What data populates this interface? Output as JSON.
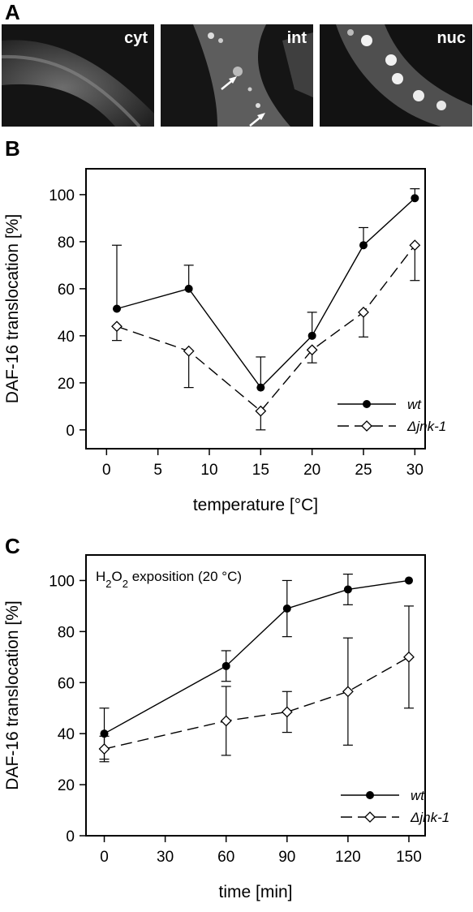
{
  "panels": {
    "a": "A",
    "b": "B",
    "c": "C"
  },
  "micrographs": [
    {
      "label": "cyt"
    },
    {
      "label": "int"
    },
    {
      "label": "nuc"
    }
  ],
  "chart_data": [
    {
      "type": "line",
      "xlabel": "temperature [°C]",
      "ylabel": "DAF-16 translocation [%]",
      "xlim": [
        -2,
        31
      ],
      "ylim": [
        -8,
        111
      ],
      "xticks": [
        0,
        5,
        10,
        15,
        20,
        25,
        30
      ],
      "yticks": [
        0,
        20,
        40,
        60,
        80,
        100
      ],
      "legend_position": "bottom-right",
      "series": [
        {
          "name": "wt",
          "x": [
            1,
            8,
            15,
            20,
            25,
            30
          ],
          "y": [
            51.5,
            60,
            18,
            40,
            78.5,
            98.5
          ],
          "err": [
            27,
            10,
            13,
            10,
            7.5,
            4
          ],
          "marker": "filled-circle",
          "dash": "solid"
        },
        {
          "name": "Δjnk-1",
          "x": [
            1,
            8,
            15,
            20,
            25,
            30
          ],
          "y": [
            44,
            33.5,
            8,
            34,
            50,
            78.5
          ],
          "err": [
            6,
            15.5,
            8,
            5.5,
            10.5,
            15
          ],
          "marker": "open-diamond",
          "dash": "dashed"
        }
      ]
    },
    {
      "type": "line",
      "annotation_prefix": "H",
      "annotation_sub": "2",
      "annotation_mid": "O",
      "annotation_sub2": "2",
      "annotation_suffix": " exposition (20 °C)",
      "xlabel": "time [min]",
      "ylabel": "DAF-16 translocation [%]",
      "xlim": [
        -9,
        158
      ],
      "ylim": [
        0,
        110
      ],
      "xticks": [
        0,
        30,
        60,
        90,
        120,
        150
      ],
      "yticks": [
        0,
        20,
        40,
        60,
        80,
        100
      ],
      "legend_position": "bottom-right",
      "series": [
        {
          "name": "wt",
          "x": [
            0,
            60,
            90,
            120,
            150
          ],
          "y": [
            40,
            66.5,
            89,
            96.5,
            100
          ],
          "err": [
            10,
            6,
            11,
            6,
            0
          ],
          "marker": "filled-circle",
          "dash": "solid"
        },
        {
          "name": "Δjnk-1",
          "x": [
            0,
            60,
            90,
            120,
            150
          ],
          "y": [
            34,
            45,
            48.5,
            56.5,
            70
          ],
          "err": [
            5,
            13.5,
            8,
            21,
            20
          ],
          "marker": "open-diamond",
          "dash": "dashed"
        }
      ]
    }
  ]
}
